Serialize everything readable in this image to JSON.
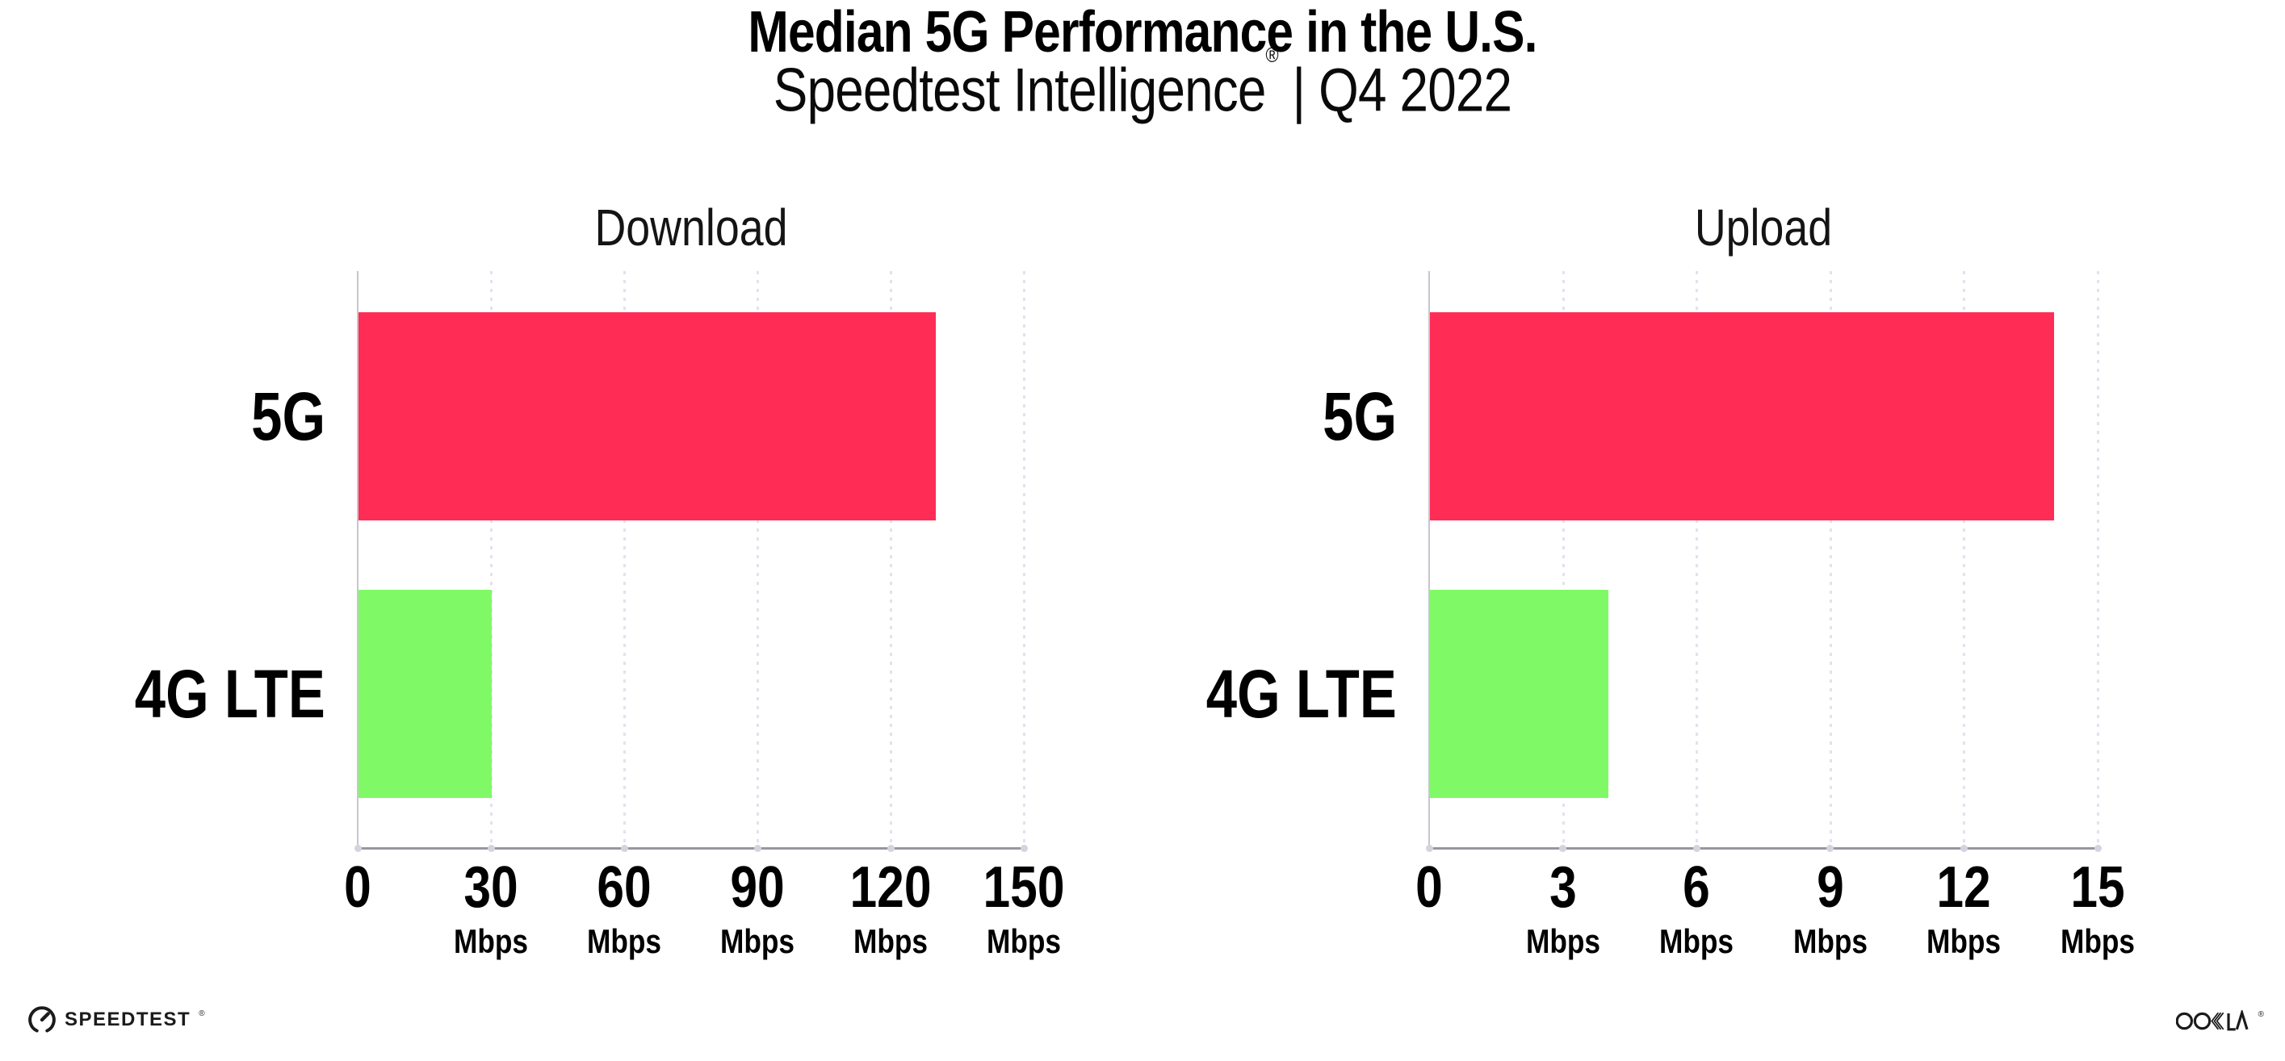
{
  "header": {
    "title": "Median 5G Performance in the U.S.",
    "subtitle_brand": "Speedtest Intelligence",
    "subtitle_reg": "®",
    "subtitle_rest": " | Q4 2022"
  },
  "footer": {
    "speedtest_label": "SPEEDTEST",
    "speedtest_reg": "®",
    "ookla_label": "OOKLA",
    "ookla_reg": "®"
  },
  "colors": {
    "bar_5g": "#FF2D55",
    "bar_4g_lte": "#80F966",
    "gridline": "#E2E2EE",
    "axis_spine": "#C6C6CE",
    "axis_line": "#97979E",
    "text": "#000000"
  },
  "chart_data": [
    {
      "type": "bar",
      "orientation": "horizontal",
      "title": "Download",
      "categories": [
        "5G",
        "4G LTE"
      ],
      "values": [
        130,
        30
      ],
      "unit": "Mbps",
      "xlim": [
        0,
        150
      ],
      "xticks": [
        0,
        30,
        60,
        90,
        120,
        150
      ],
      "xtick_unit": "Mbps",
      "bar_colors": [
        "#FF2D55",
        "#80F966"
      ],
      "grid": "vertical dotted",
      "legend": "none"
    },
    {
      "type": "bar",
      "orientation": "horizontal",
      "title": "Upload",
      "categories": [
        "5G",
        "4G LTE"
      ],
      "values": [
        14,
        4
      ],
      "unit": "Mbps",
      "xlim": [
        0,
        15
      ],
      "xticks": [
        0,
        3,
        6,
        9,
        12,
        15
      ],
      "xtick_unit": "Mbps",
      "bar_colors": [
        "#FF2D55",
        "#80F966"
      ],
      "grid": "vertical dotted",
      "legend": "none"
    }
  ]
}
